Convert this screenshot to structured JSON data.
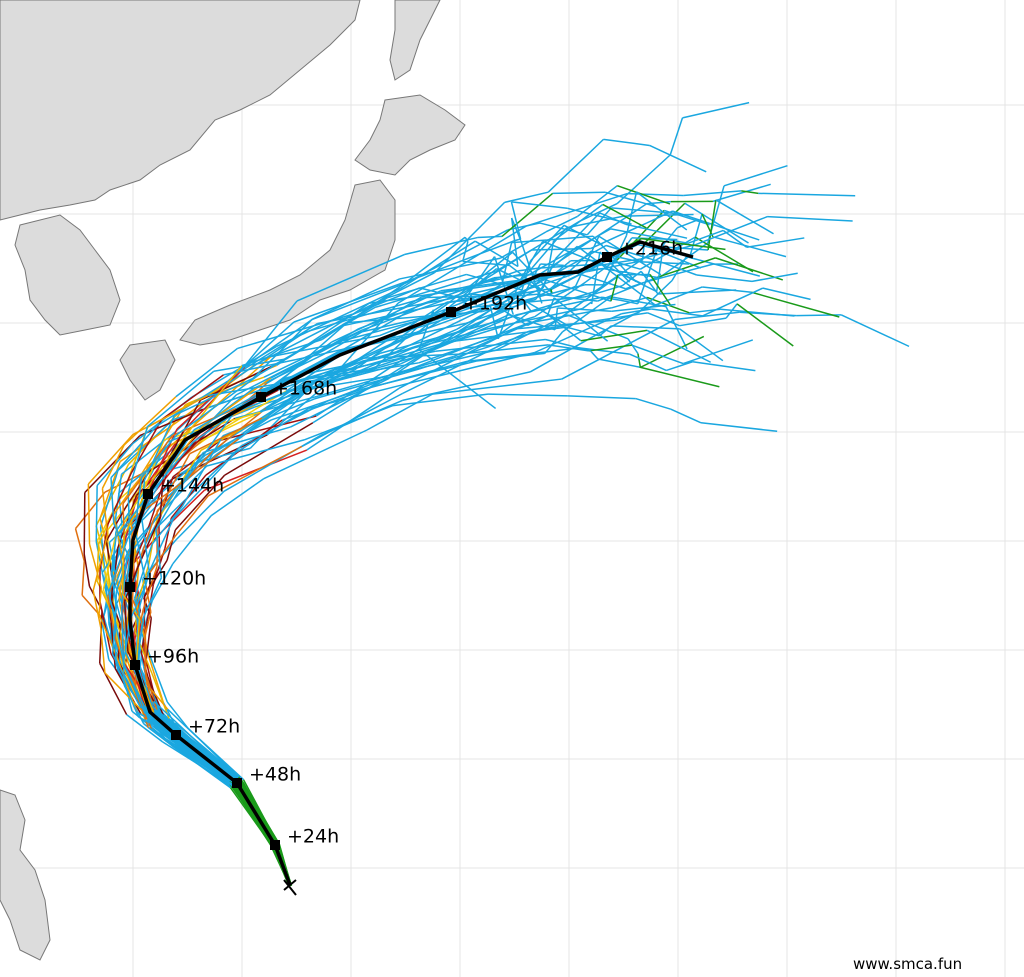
{
  "track_labels": [
    "+24h",
    "+48h",
    "+72h",
    "+96h",
    "+120h",
    "+144h",
    "+168h",
    "+192h",
    "+216h"
  ],
  "credit": "www.smca.fun"
}
